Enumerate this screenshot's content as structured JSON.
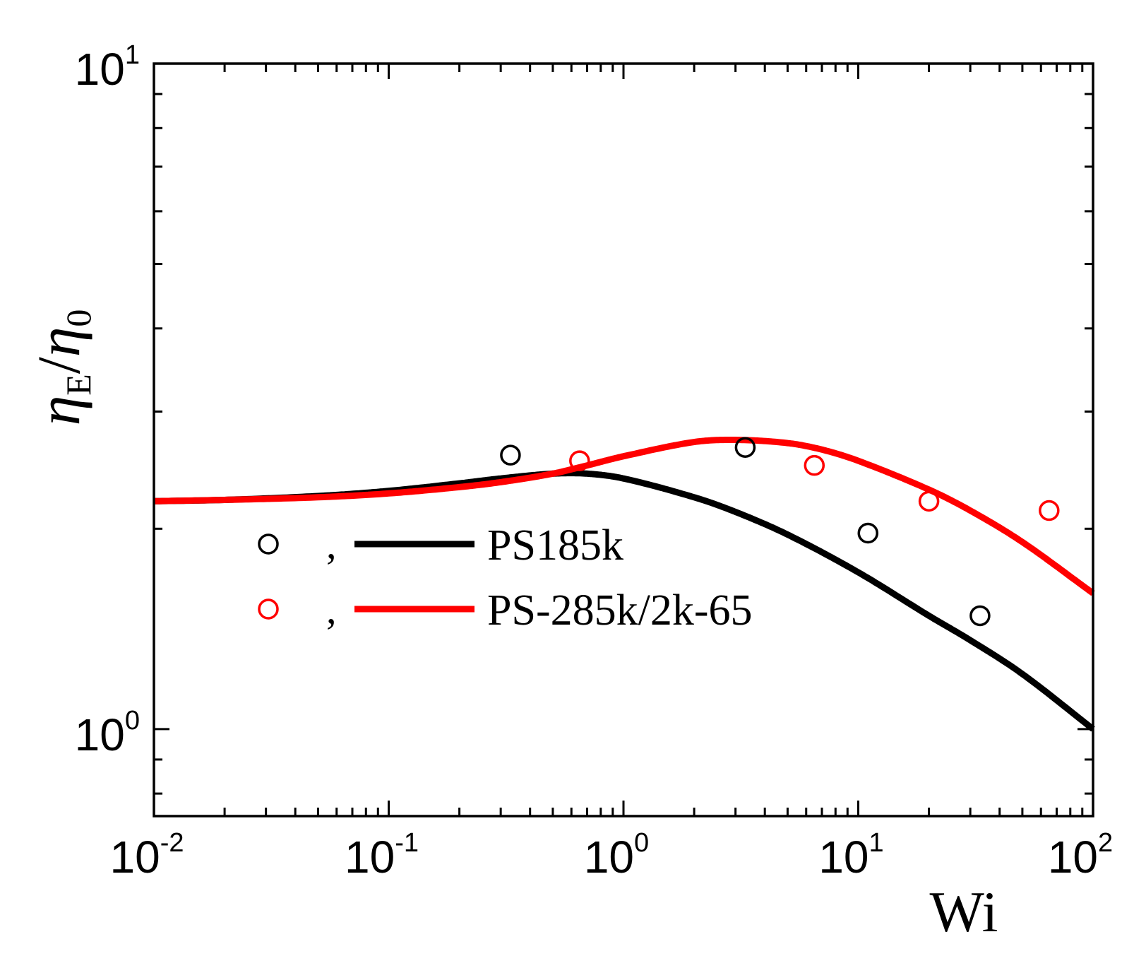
{
  "chart_data": {
    "type": "scatter",
    "title": "",
    "xlabel": "Wi",
    "ylabel": {
      "symbol": "η",
      "sub1": "E",
      "slash": "/",
      "sub2": "0"
    },
    "xscale": "log",
    "yscale": "log",
    "xlim": [
      0.01,
      100
    ],
    "ylim": [
      0.74,
      10
    ],
    "x_ticks": [
      {
        "base": "10",
        "exp": "-2",
        "value": 0.01
      },
      {
        "base": "10",
        "exp": "-1",
        "value": 0.1
      },
      {
        "base": "10",
        "exp": "0",
        "value": 1
      },
      {
        "base": "10",
        "exp": "1",
        "value": 10
      },
      {
        "base": "10",
        "exp": "2",
        "value": 100
      }
    ],
    "y_ticks": [
      {
        "base": "10",
        "exp": "0",
        "value": 1
      },
      {
        "base": "10",
        "exp": "1",
        "value": 10
      }
    ],
    "legend": {
      "position": "lower-left",
      "separator": ",",
      "entries": [
        {
          "label": "PS185k",
          "color": "#000000"
        },
        {
          "label": "PS-285k/2k-65",
          "color": "#ff0000"
        }
      ]
    },
    "series": [
      {
        "name": "PS185k",
        "color": "#000000",
        "points": {
          "x": [
            0.33,
            3.3,
            11,
            33
          ],
          "y": [
            2.58,
            2.65,
            1.97,
            1.48
          ]
        },
        "curve": {
          "x": [
            0.01,
            0.02,
            0.05,
            0.1,
            0.2,
            0.3,
            0.5,
            0.7,
            1,
            2,
            3,
            5,
            10,
            20,
            30,
            50,
            100
          ],
          "y": [
            2.2,
            2.21,
            2.24,
            2.28,
            2.34,
            2.38,
            2.42,
            2.42,
            2.38,
            2.23,
            2.12,
            1.96,
            1.72,
            1.48,
            1.36,
            1.21,
            1.0
          ]
        }
      },
      {
        "name": "PS-285k/2k-65",
        "color": "#ff0000",
        "points": {
          "x": [
            0.65,
            6.5,
            20,
            65
          ],
          "y": [
            2.53,
            2.49,
            2.2,
            2.13
          ]
        },
        "curve": {
          "x": [
            0.01,
            0.02,
            0.05,
            0.1,
            0.2,
            0.3,
            0.5,
            0.7,
            1,
            2,
            3,
            5,
            7,
            10,
            20,
            30,
            50,
            100
          ],
          "y": [
            2.2,
            2.21,
            2.23,
            2.26,
            2.31,
            2.35,
            2.42,
            2.49,
            2.57,
            2.7,
            2.72,
            2.69,
            2.63,
            2.53,
            2.29,
            2.13,
            1.91,
            1.6
          ]
        }
      }
    ]
  }
}
